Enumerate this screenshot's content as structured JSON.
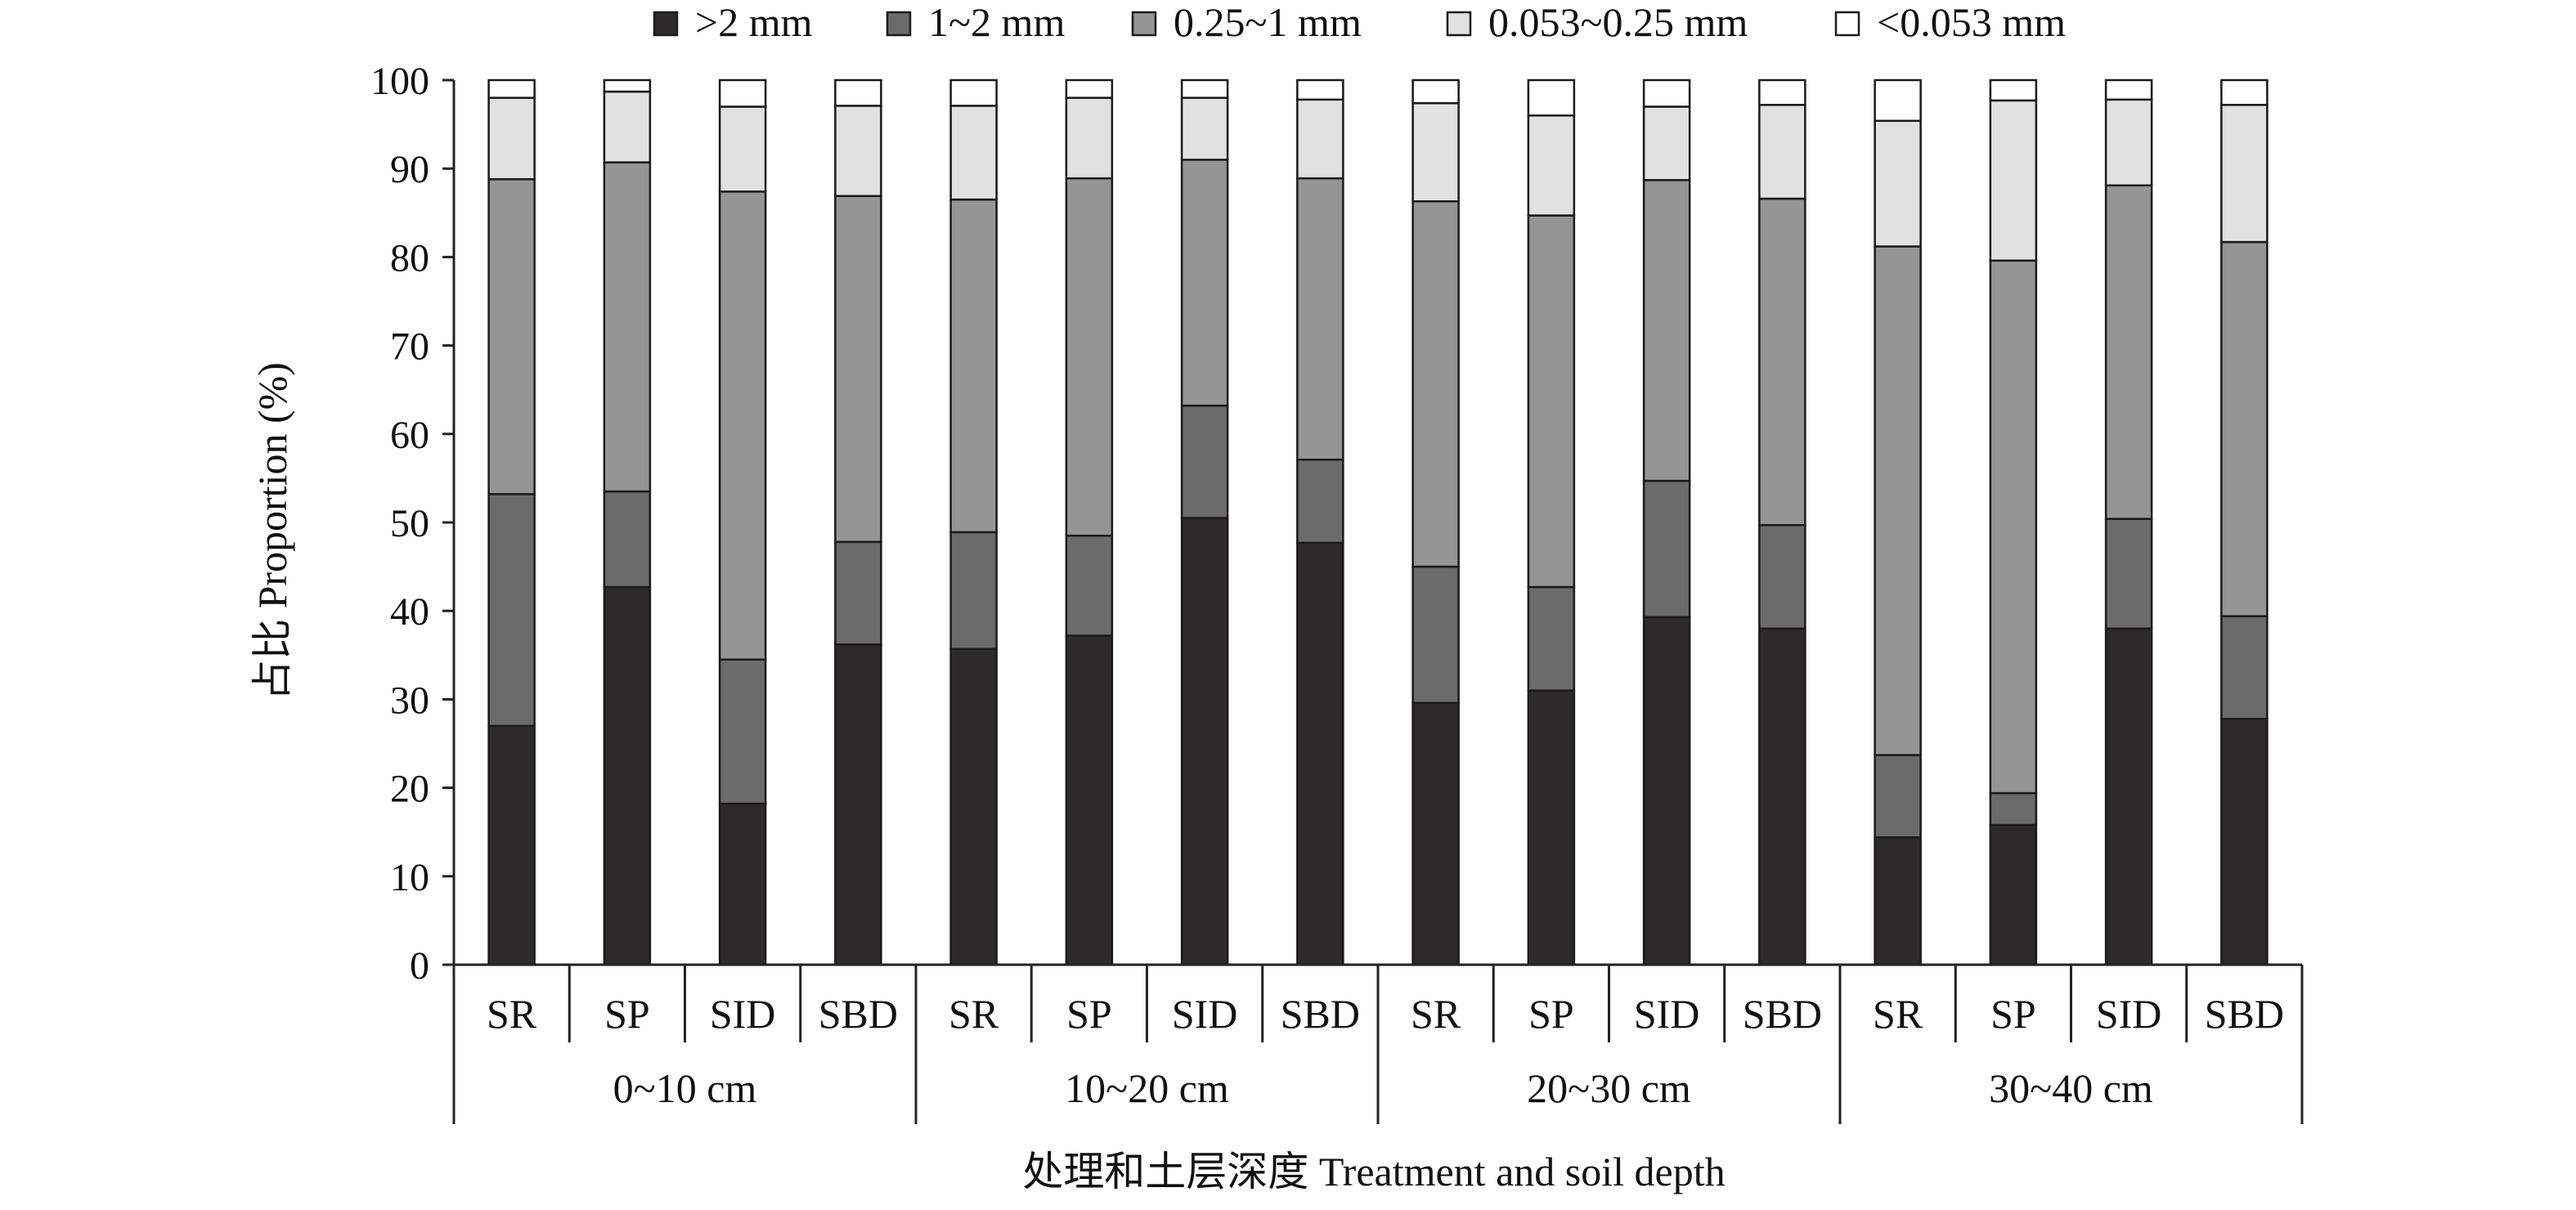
{
  "chart_data": {
    "type": "bar",
    "stacked": true,
    "ylabel": "占比 Proportion (%)",
    "xlabel": "处理和土层深度 Treatment and soil depth",
    "ylim": [
      0,
      100
    ],
    "yticks": [
      0,
      10,
      20,
      30,
      40,
      50,
      60,
      70,
      80,
      90,
      100
    ],
    "grid": false,
    "legend_position": "top",
    "groups": [
      {
        "label": "0~10 cm",
        "categories": [
          "SR",
          "SP",
          "SID",
          "SBD"
        ]
      },
      {
        "label": "10~20 cm",
        "categories": [
          "SR",
          "SP",
          "SID",
          "SBD"
        ]
      },
      {
        "label": "20~30 cm",
        "categories": [
          "SR",
          "SP",
          "SID",
          "SBD"
        ]
      },
      {
        "label": "30~40 cm",
        "categories": [
          "SR",
          "SP",
          "SID",
          "SBD"
        ]
      }
    ],
    "series": [
      {
        "name": ">2 mm",
        "color": "#2e2a2b",
        "values": [
          27,
          42.7,
          18.2,
          36.2,
          35.7,
          37.2,
          50.5,
          47.7,
          29.6,
          31.0,
          39.3,
          38.0,
          14.4,
          15.8,
          38.0,
          27.8
        ]
      },
      {
        "name": "1~2 mm",
        "color": "#6b6b6b",
        "values": [
          26.2,
          10.8,
          16.3,
          11.6,
          13.2,
          11.3,
          12.7,
          9.4,
          15.4,
          11.7,
          15.4,
          11.7,
          9.3,
          3.6,
          12.4,
          11.6
        ]
      },
      {
        "name": "0.25~1 mm",
        "color": "#959595",
        "values": [
          35.6,
          37.2,
          52.9,
          39.1,
          37.6,
          40.4,
          27.8,
          31.8,
          41.3,
          42.0,
          34.0,
          36.9,
          57.5,
          60.2,
          37.7,
          42.3
        ]
      },
      {
        "name": "0.053~0.25 mm",
        "color": "#e1e1e1",
        "values": [
          9.2,
          8.0,
          9.6,
          10.2,
          10.6,
          9.1,
          7.0,
          8.9,
          11.1,
          11.3,
          8.3,
          10.6,
          14.2,
          18.1,
          9.7,
          15.5
        ]
      },
      {
        "name": "<0.053 mm",
        "color": "#ffffff",
        "values": [
          2.0,
          1.3,
          3.0,
          2.9,
          2.9,
          2.0,
          2.0,
          2.2,
          2.6,
          4.0,
          3.0,
          2.8,
          4.6,
          2.3,
          2.2,
          2.8
        ]
      }
    ]
  }
}
